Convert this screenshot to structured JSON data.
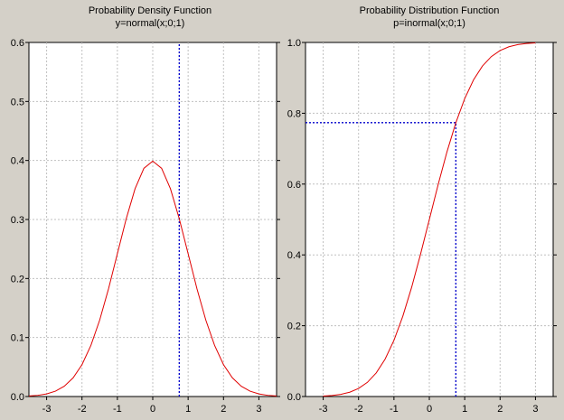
{
  "chart_data": [
    {
      "type": "line",
      "title": "Probability Density Function",
      "subtitle": "y=normal(x;0;1)",
      "xlim": [
        -3.5,
        3.5
      ],
      "ylim": [
        0,
        0.6
      ],
      "x_ticks": [
        -3,
        -2,
        -1,
        0,
        1,
        2,
        3
      ],
      "y_ticks": [
        0.0,
        0.1,
        0.2,
        0.3,
        0.4,
        0.5,
        0.6
      ],
      "x_tick_labels": [
        "-3",
        "-2",
        "-1",
        "0",
        "1",
        "2",
        "3"
      ],
      "y_tick_labels": [
        "0.0",
        "0.1",
        "0.2",
        "0.3",
        "0.4",
        "0.5",
        "0.6"
      ],
      "grid": true,
      "series": [
        {
          "color": "#e00000",
          "x": [
            -3.5,
            -3.25,
            -3.0,
            -2.75,
            -2.5,
            -2.25,
            -2.0,
            -1.75,
            -1.5,
            -1.25,
            -1.0,
            -0.75,
            -0.5,
            -0.25,
            0.0,
            0.25,
            0.5,
            0.75,
            1.0,
            1.25,
            1.5,
            1.75,
            2.0,
            2.25,
            2.5,
            2.75,
            3.0,
            3.25,
            3.5
          ],
          "y": [
            0.0009,
            0.002,
            0.0044,
            0.0091,
            0.0175,
            0.0317,
            0.054,
            0.0863,
            0.1295,
            0.1826,
            0.242,
            0.3011,
            0.3521,
            0.3867,
            0.3989,
            0.3867,
            0.3521,
            0.3011,
            0.242,
            0.1826,
            0.1295,
            0.0863,
            0.054,
            0.0317,
            0.0175,
            0.0091,
            0.0044,
            0.002,
            0.0009
          ]
        }
      ],
      "reference_lines": [
        {
          "orientation": "vertical",
          "x": 0.75,
          "y_from": 0,
          "y_to": 0.6,
          "color": "#0000cc"
        }
      ]
    },
    {
      "type": "line",
      "title": "Probability Distribution Function",
      "subtitle": "p=inormal(x;0;1)",
      "xlim": [
        -3.5,
        3.5
      ],
      "ylim": [
        0,
        1.0
      ],
      "x_ticks": [
        -3,
        -2,
        -1,
        0,
        1,
        2,
        3
      ],
      "y_ticks": [
        0.0,
        0.2,
        0.4,
        0.6,
        0.8,
        1.0
      ],
      "x_tick_labels": [
        "-3",
        "-2",
        "-1",
        "0",
        "1",
        "2",
        "3"
      ],
      "y_tick_labels": [
        "0.0",
        "0.2",
        "0.4",
        "0.6",
        "0.8",
        "1.0"
      ],
      "grid": true,
      "series": [
        {
          "color": "#e00000",
          "x": [
            -3.0,
            -2.75,
            -2.5,
            -2.25,
            -2.0,
            -1.75,
            -1.5,
            -1.25,
            -1.0,
            -0.75,
            -0.5,
            -0.25,
            0.0,
            0.25,
            0.5,
            0.75,
            1.0,
            1.25,
            1.5,
            1.75,
            2.0,
            2.25,
            2.5,
            2.75,
            3.0
          ],
          "y": [
            0.0013,
            0.003,
            0.0062,
            0.0122,
            0.0228,
            0.0401,
            0.0668,
            0.1056,
            0.1587,
            0.2266,
            0.3085,
            0.4013,
            0.5,
            0.5987,
            0.6915,
            0.7734,
            0.8413,
            0.8944,
            0.9332,
            0.9599,
            0.9772,
            0.9878,
            0.9938,
            0.997,
            0.9987
          ]
        }
      ],
      "reference_lines": [
        {
          "orientation": "vertical",
          "x": 0.75,
          "y_from": 0,
          "y_to": 0.7734,
          "color": "#0000cc"
        },
        {
          "orientation": "horizontal",
          "y": 0.7734,
          "x_from": -3.5,
          "x_to": 0.75,
          "color": "#0000cc"
        }
      ]
    }
  ]
}
